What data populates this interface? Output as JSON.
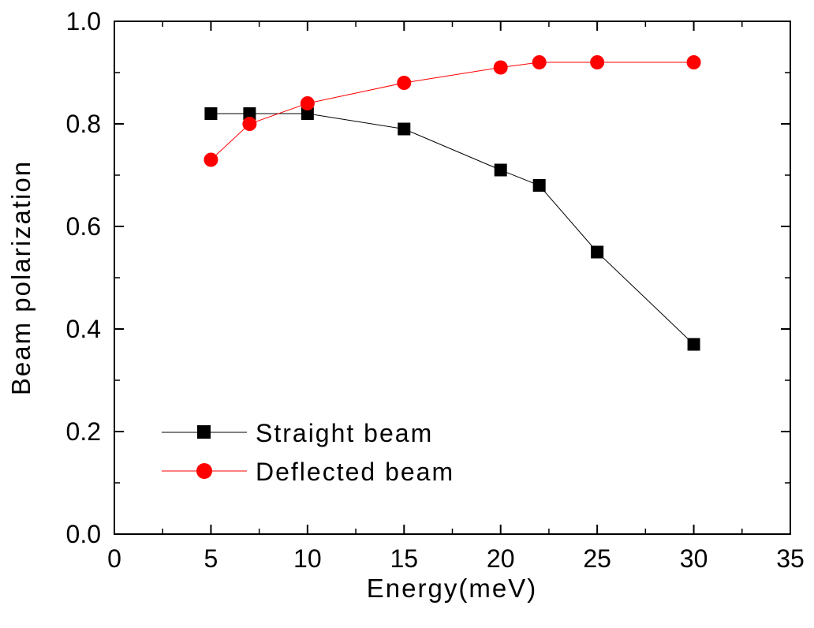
{
  "chart_data": {
    "type": "line",
    "title": "",
    "xlabel": "Energy(meV)",
    "ylabel": "Beam polarization",
    "xlim": [
      0,
      35
    ],
    "ylim": [
      0.0,
      1.0
    ],
    "x_ticks": [
      0,
      5,
      10,
      15,
      20,
      25,
      30,
      35
    ],
    "x_tick_labels": [
      "0",
      "5",
      "10",
      "15",
      "20",
      "25",
      "30",
      "35"
    ],
    "y_ticks": [
      0.0,
      0.2,
      0.4,
      0.6,
      0.8,
      1.0
    ],
    "y_tick_labels": [
      "0.0",
      "0.2",
      "0.4",
      "0.6",
      "0.8",
      "1.0"
    ],
    "grid": false,
    "legend_position": "lower-left",
    "series": [
      {
        "name": "Straight beam",
        "marker": "square",
        "color": "#000000",
        "line_color": "#000000",
        "x": [
          5,
          7,
          10,
          15,
          20,
          22,
          25,
          30
        ],
        "y": [
          0.82,
          0.82,
          0.82,
          0.79,
          0.71,
          0.68,
          0.55,
          0.37
        ]
      },
      {
        "name": "Deflected beam",
        "marker": "circle",
        "color": "#ff0000",
        "line_color": "#ff0000",
        "x": [
          5,
          7,
          10,
          15,
          20,
          22,
          25,
          30
        ],
        "y": [
          0.73,
          0.8,
          0.84,
          0.88,
          0.91,
          0.92,
          0.92,
          0.92
        ]
      }
    ]
  }
}
